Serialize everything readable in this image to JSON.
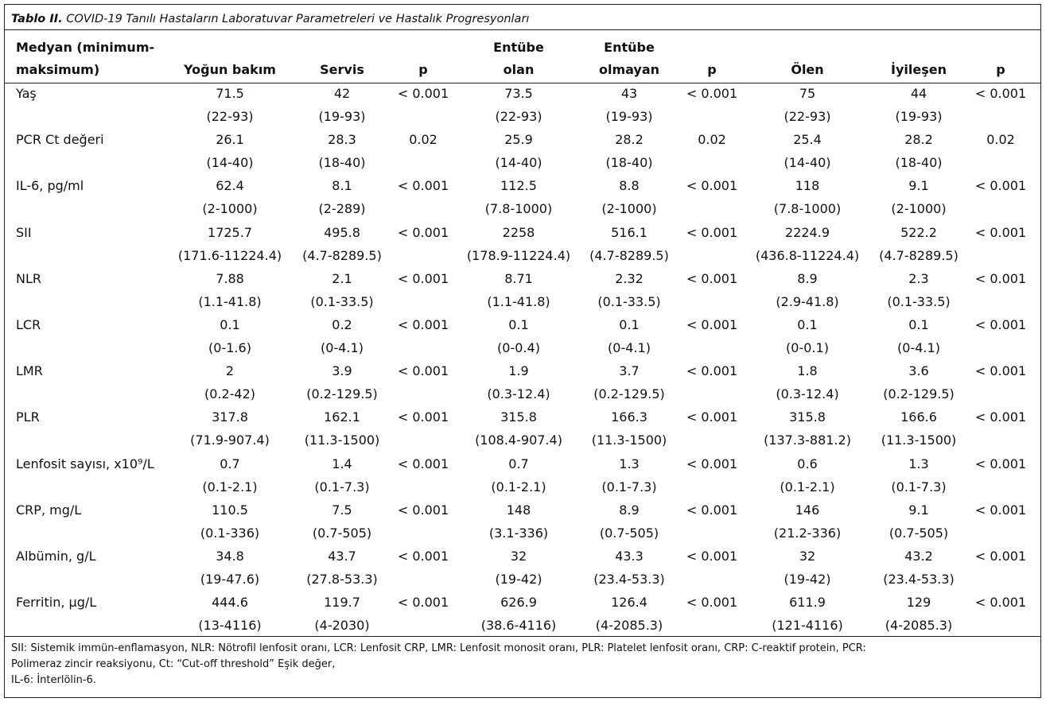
{
  "title": {
    "label": "Tablo II.",
    "text": "COVID-19 Tanılı Hastaların Laboratuvar Parametreleri ve Hastalık Progresyonları"
  },
  "table": {
    "header": [
      [
        "Medyan (minimum-",
        "maksimum)"
      ],
      [
        "Yoğun bakım"
      ],
      [
        "Servis"
      ],
      [
        "p"
      ],
      [
        "Entübe",
        "olan"
      ],
      [
        "Entübe",
        "olmayan"
      ],
      [
        "p"
      ],
      [
        "Ölen"
      ],
      [
        "İyileşen"
      ],
      [
        "p"
      ]
    ],
    "rows": [
      {
        "label": "Yaş",
        "cells": [
          [
            "71.5",
            "(22-93)"
          ],
          [
            "42",
            "(19-93)"
          ],
          [
            "< 0.001"
          ],
          [
            "73.5",
            "(22-93)"
          ],
          [
            "43",
            "(19-93)"
          ],
          [
            "< 0.001"
          ],
          [
            "75",
            "(22-93)"
          ],
          [
            "44",
            "(19-93)"
          ],
          [
            "< 0.001"
          ]
        ]
      },
      {
        "label": "PCR Ct değeri",
        "cells": [
          [
            "26.1",
            "(14-40)"
          ],
          [
            "28.3",
            "(18-40)"
          ],
          [
            "0.02"
          ],
          [
            "25.9",
            "(14-40)"
          ],
          [
            "28.2",
            "(18-40)"
          ],
          [
            "0.02"
          ],
          [
            "25.4",
            "(14-40)"
          ],
          [
            "28.2",
            "(18-40)"
          ],
          [
            "0.02"
          ]
        ]
      },
      {
        "label": "IL-6, pg/ml",
        "cells": [
          [
            "62.4",
            "(2-1000)"
          ],
          [
            "8.1",
            "(2-289)"
          ],
          [
            "< 0.001"
          ],
          [
            "112.5",
            "(7.8-1000)"
          ],
          [
            "8.8",
            "(2-1000)"
          ],
          [
            "< 0.001"
          ],
          [
            "118",
            "(7.8-1000)"
          ],
          [
            "9.1",
            "(2-1000)"
          ],
          [
            "< 0.001"
          ]
        ]
      },
      {
        "label": "SII",
        "cells": [
          [
            "1725.7",
            "(171.6-11224.4)"
          ],
          [
            "495.8",
            "(4.7-8289.5)"
          ],
          [
            "< 0.001"
          ],
          [
            "2258",
            "(178.9-11224.4)"
          ],
          [
            "516.1",
            "(4.7-8289.5)"
          ],
          [
            "< 0.001"
          ],
          [
            "2224.9",
            "(436.8-11224.4)"
          ],
          [
            "522.2",
            "(4.7-8289.5)"
          ],
          [
            "< 0.001"
          ]
        ]
      },
      {
        "label": "NLR",
        "cells": [
          [
            "7.88",
            "(1.1-41.8)"
          ],
          [
            "2.1",
            "(0.1-33.5)"
          ],
          [
            "< 0.001"
          ],
          [
            "8.71",
            "(1.1-41.8)"
          ],
          [
            "2.32",
            "(0.1-33.5)"
          ],
          [
            "< 0.001"
          ],
          [
            "8.9",
            "(2.9-41.8)"
          ],
          [
            "2.3",
            "(0.1-33.5)"
          ],
          [
            "< 0.001"
          ]
        ]
      },
      {
        "label": "LCR",
        "cells": [
          [
            "0.1",
            "(0-1.6)"
          ],
          [
            "0.2",
            "(0-4.1)"
          ],
          [
            "< 0.001"
          ],
          [
            "0.1",
            "(0-0.4)"
          ],
          [
            "0.1",
            "(0-4.1)"
          ],
          [
            "< 0.001"
          ],
          [
            "0.1",
            "(0-0.1)"
          ],
          [
            "0.1",
            "(0-4.1)"
          ],
          [
            "< 0.001"
          ]
        ]
      },
      {
        "label": "LMR",
        "cells": [
          [
            "2",
            "(0.2-42)"
          ],
          [
            "3.9",
            "(0.2-129.5)"
          ],
          [
            "< 0.001"
          ],
          [
            "1.9",
            "(0.3-12.4)"
          ],
          [
            "3.7",
            "(0.2-129.5)"
          ],
          [
            "< 0.001"
          ],
          [
            "1.8",
            "(0.3-12.4)"
          ],
          [
            "3.6",
            "(0.2-129.5)"
          ],
          [
            "< 0.001"
          ]
        ]
      },
      {
        "label": "PLR",
        "cells": [
          [
            "317.8",
            "(71.9-907.4)"
          ],
          [
            "162.1",
            "(11.3-1500)"
          ],
          [
            "< 0.001"
          ],
          [
            "315.8",
            "(108.4-907.4)"
          ],
          [
            "166.3",
            "(11.3-1500)"
          ],
          [
            "< 0.001"
          ],
          [
            "315.8",
            "(137.3-881.2)"
          ],
          [
            "166.6",
            "(11.3-1500)"
          ],
          [
            "< 0.001"
          ]
        ]
      },
      {
        "label": "Lenfosit sayısı, x10⁹/L",
        "cells": [
          [
            "0.7",
            "(0.1-2.1)"
          ],
          [
            "1.4",
            "(0.1-7.3)"
          ],
          [
            "< 0.001"
          ],
          [
            "0.7",
            "(0.1-2.1)"
          ],
          [
            "1.3",
            "(0.1-7.3)"
          ],
          [
            "< 0.001"
          ],
          [
            "0.6",
            "(0.1-2.1)"
          ],
          [
            "1.3",
            "(0.1-7.3)"
          ],
          [
            "< 0.001"
          ]
        ]
      },
      {
        "label": "CRP, mg/L",
        "cells": [
          [
            "110.5",
            "(0.1-336)"
          ],
          [
            "7.5",
            "(0.7-505)"
          ],
          [
            "< 0.001"
          ],
          [
            "148",
            "(3.1-336)"
          ],
          [
            "8.9",
            "(0.7-505)"
          ],
          [
            "< 0.001"
          ],
          [
            "146",
            "(21.2-336)"
          ],
          [
            "9.1",
            "(0.7-505)"
          ],
          [
            "< 0.001"
          ]
        ]
      },
      {
        "label": "Albümin, g/L",
        "cells": [
          [
            "34.8",
            "(19-47.6)"
          ],
          [
            "43.7",
            "(27.8-53.3)"
          ],
          [
            "< 0.001"
          ],
          [
            "32",
            "(19-42)"
          ],
          [
            "43.3",
            "(23.4-53.3)"
          ],
          [
            "< 0.001"
          ],
          [
            "32",
            "(19-42)"
          ],
          [
            "43.2",
            "(23.4-53.3)"
          ],
          [
            "< 0.001"
          ]
        ]
      },
      {
        "label": "Ferritin, µg/L",
        "cells": [
          [
            "444.6",
            "(13-4116)"
          ],
          [
            "119.7",
            "(4-2030)"
          ],
          [
            "< 0.001"
          ],
          [
            "626.9",
            "(38.6-4116)"
          ],
          [
            "126.4",
            "(4-2085.3)"
          ],
          [
            "< 0.001"
          ],
          [
            "611.9",
            "(121-4116)"
          ],
          [
            "129",
            "(4-2085.3)"
          ],
          [
            "< 0.001"
          ]
        ]
      }
    ]
  },
  "footnote": [
    "SII: Sistemik immün-enflamasyon, NLR: Nötrofil lenfosit oranı, LCR: Lenfosit CRP, LMR: Lenfosit monosit oranı, PLR: Platelet lenfosit oranı, CRP: C-reaktif protein, PCR:",
    "Polimeraz zincir reaksiyonu, Ct: “Cut-off threshold” Eşik değer,",
    "IL-6: İnterlölin-6."
  ]
}
